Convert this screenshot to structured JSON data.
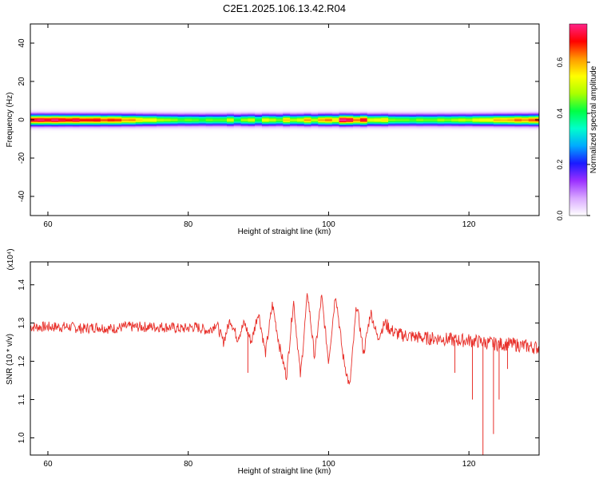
{
  "title": "C2E1.2025.106.13.42.R04",
  "chart_data": [
    {
      "type": "heatmap",
      "title": "C2E1.2025.106.13.42.R04",
      "xlabel": "Height of straight line (km)",
      "ylabel": "Frequency (Hz)",
      "xlim": [
        57.5,
        130
      ],
      "ylim": [
        -50,
        50
      ],
      "xticks": [
        "60",
        "80",
        "100",
        "120"
      ],
      "yticks": [
        "-40",
        "-20",
        "0",
        "20",
        "40"
      ],
      "colorbar": {
        "label": "Normalized spectral amplitude",
        "range": [
          0.0,
          0.75
        ],
        "ticks": [
          "0.0",
          "0.2",
          "0.4",
          "0.6"
        ],
        "colors": [
          "#ffffff",
          "#d9a8ff",
          "#9b30ff",
          "#1a1aff",
          "#00aaff",
          "#00ffcc",
          "#00ff44",
          "#aaff00",
          "#ffff00",
          "#ff9900",
          "#ff0000",
          "#ff2288"
        ]
      },
      "band": {
        "center_hz": 0,
        "half_width_hz": 4,
        "amplitude_profile": [
          {
            "x": 58,
            "amp": 0.72
          },
          {
            "x": 60,
            "amp": 0.74
          },
          {
            "x": 65,
            "amp": 0.7
          },
          {
            "x": 70,
            "amp": 0.66
          },
          {
            "x": 74,
            "amp": 0.55
          },
          {
            "x": 78,
            "amp": 0.46
          },
          {
            "x": 82,
            "amp": 0.44
          },
          {
            "x": 86,
            "amp": 0.46
          },
          {
            "x": 90,
            "amp": 0.48
          },
          {
            "x": 94,
            "amp": 0.52
          },
          {
            "x": 97,
            "amp": 0.55
          },
          {
            "x": 100,
            "amp": 0.6
          },
          {
            "x": 103,
            "amp": 0.75
          },
          {
            "x": 106,
            "amp": 0.58
          },
          {
            "x": 110,
            "amp": 0.45
          },
          {
            "x": 115,
            "amp": 0.46
          },
          {
            "x": 120,
            "amp": 0.5
          },
          {
            "x": 125,
            "amp": 0.6
          },
          {
            "x": 130,
            "amp": 0.66
          }
        ]
      }
    },
    {
      "type": "line",
      "xlabel": "Height of straight line (km)",
      "ylabel": "SNR (10 * v/v)",
      "scale_label": "(x10⁴)",
      "xlim": [
        57.5,
        130
      ],
      "ylim": [
        0.955,
        1.46
      ],
      "xticks": [
        "60",
        "80",
        "100",
        "120"
      ],
      "yticks": [
        "1.0",
        "1.1",
        "1.2",
        "1.3",
        "1.4"
      ],
      "color": "#e8302a",
      "series": [
        {
          "x": [
            57.5,
            59,
            61,
            63,
            65,
            67,
            69,
            71,
            73,
            75,
            77,
            79,
            81,
            83,
            84,
            85,
            86,
            87,
            88,
            89,
            90,
            91,
            92,
            93,
            94,
            95,
            96,
            97,
            98,
            99,
            100,
            101,
            102,
            103,
            104,
            105,
            106,
            107,
            108,
            109,
            110,
            112,
            114,
            116,
            118,
            120,
            122,
            124,
            126,
            128,
            130
          ],
          "y": [
            1.29,
            1.29,
            1.29,
            1.29,
            1.285,
            1.29,
            1.285,
            1.29,
            1.29,
            1.29,
            1.29,
            1.285,
            1.29,
            1.28,
            1.3,
            1.25,
            1.31,
            1.26,
            1.3,
            1.25,
            1.33,
            1.22,
            1.35,
            1.24,
            1.16,
            1.36,
            1.16,
            1.38,
            1.21,
            1.37,
            1.2,
            1.38,
            1.22,
            1.13,
            1.35,
            1.22,
            1.33,
            1.26,
            1.3,
            1.28,
            1.27,
            1.265,
            1.26,
            1.26,
            1.255,
            1.255,
            1.25,
            1.245,
            1.245,
            1.24,
            1.235
          ]
        }
      ]
    }
  ]
}
